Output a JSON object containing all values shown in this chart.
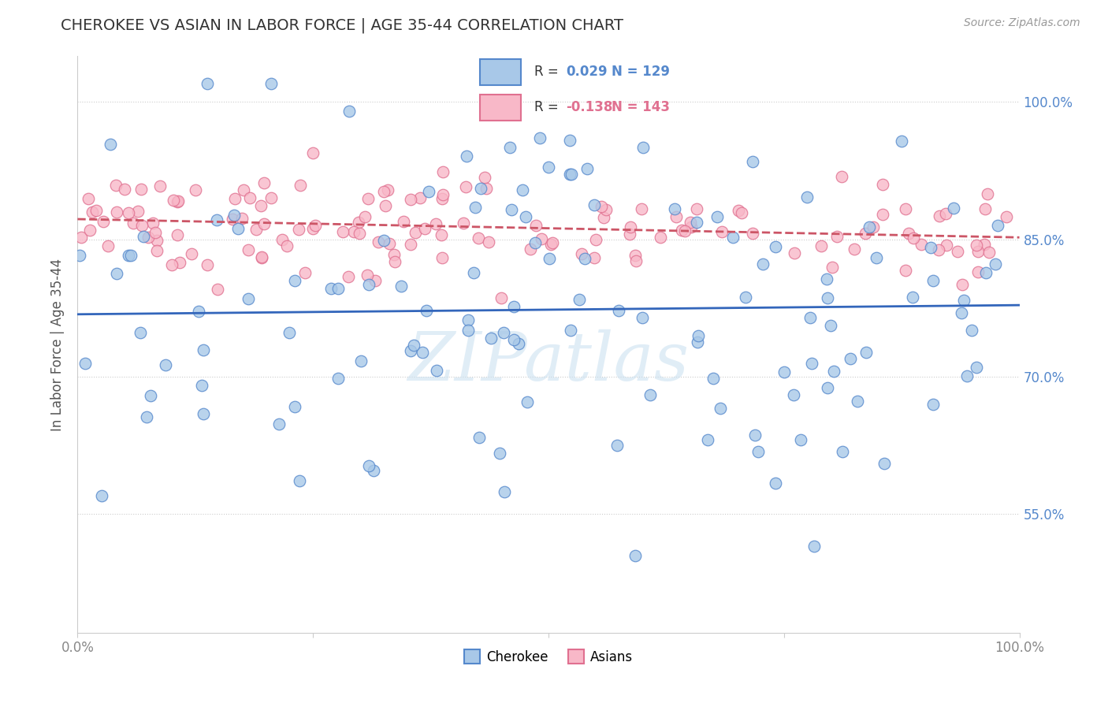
{
  "title": "CHEROKEE VS ASIAN IN LABOR FORCE | AGE 35-44 CORRELATION CHART",
  "source": "Source: ZipAtlas.com",
  "ylabel": "In Labor Force | Age 35-44",
  "xlim": [
    0.0,
    1.0
  ],
  "ylim": [
    0.42,
    1.05
  ],
  "ytick_vals": [
    0.55,
    0.7,
    0.85,
    1.0
  ],
  "ytick_labels": [
    "55.0%",
    "70.0%",
    "85.0%",
    "100.0%"
  ],
  "cherokee_R": 0.029,
  "cherokee_N": 129,
  "asian_R": -0.138,
  "asian_N": 143,
  "cherokee_color": "#a8c8e8",
  "cherokee_edge_color": "#5588cc",
  "asian_color": "#f8b8c8",
  "asian_edge_color": "#e07090",
  "cherokee_line_color": "#3366bb",
  "asian_line_color": "#cc5566",
  "background_color": "#ffffff",
  "grid_color": "#cccccc",
  "watermark_text": "ZIPatlas",
  "watermark_color": "#c8dff0",
  "title_color": "#333333",
  "tick_color": "#5588cc",
  "cherokee_trend_y0": 0.768,
  "cherokee_trend_y1": 0.778,
  "asian_trend_y0": 0.872,
  "asian_trend_y1": 0.852
}
